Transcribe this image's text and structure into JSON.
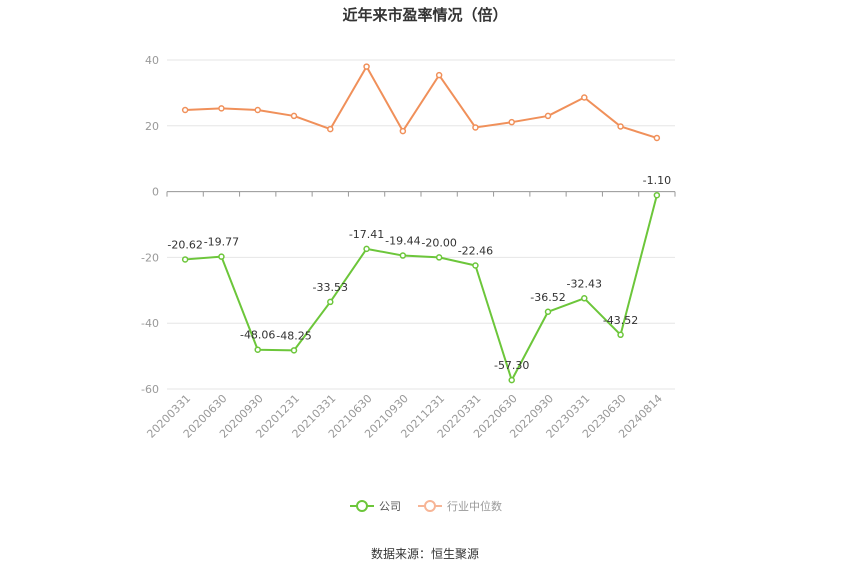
{
  "chart_data": {
    "type": "line",
    "title": "近年来市盈率情况（倍）",
    "categories": [
      "20200331",
      "20200630",
      "20200930",
      "20201231",
      "20210331",
      "20210630",
      "20210930",
      "20211231",
      "20220331",
      "20220630",
      "20220930",
      "20230331",
      "20230630",
      "20240814"
    ],
    "series": [
      {
        "name": "公司",
        "color": "#6cc63a",
        "values": [
          -20.62,
          -19.77,
          -48.06,
          -48.25,
          -33.53,
          -17.41,
          -19.44,
          -20.0,
          -22.46,
          -57.3,
          -36.52,
          -32.43,
          -43.52,
          -1.1
        ],
        "labels": [
          "-20.62",
          "-19.77",
          "-48.06",
          "-48.25",
          "-33.53",
          "-17.41",
          "-19.44",
          "-20.00",
          "-22.46",
          "-57.30",
          "-36.52",
          "-32.43",
          "-43.52",
          "-1.10"
        ]
      },
      {
        "name": "行业中位数",
        "color": "#f0905a",
        "values": [
          24.8,
          25.3,
          24.8,
          23.0,
          19.0,
          38.0,
          18.4,
          35.4,
          19.5,
          21.1,
          23.0,
          28.6,
          19.8,
          16.3
        ]
      }
    ],
    "yticks": [
      40,
      20,
      0,
      -20,
      -40,
      -60
    ],
    "ylim": [
      -60,
      40
    ],
    "grid": true,
    "legend_position": "bottom"
  },
  "footer": {
    "source": "数据来源：恒生聚源"
  }
}
